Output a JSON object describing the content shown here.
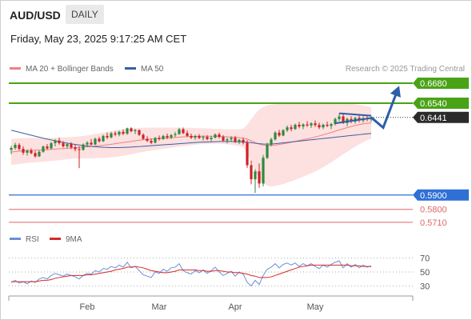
{
  "header": {
    "symbol": "AUD/USD",
    "period": "DAILY",
    "datetime": "Friday, May 23, 2025 9:17:25 AM CET"
  },
  "legend": {
    "ma20": "MA 20 + Bollinger Bands",
    "ma50": "MA 50",
    "credit": "Research © 2025 Trading Central",
    "rsi": "RSI",
    "rsi_ma": "9MA"
  },
  "colors": {
    "bull": "#2e8b3a",
    "bear": "#cc2229",
    "ma20": "#f08080",
    "ma50": "#3a5fa0",
    "bollinger_fill": "#fde0e0",
    "resistance": "#4aa316",
    "support": "#2f6fd6",
    "support_secondary": "#e06666",
    "projection": "#2c5fa6",
    "rsi": "#6b8fd6",
    "rsi_ma": "#d62a2a"
  },
  "chart_data": {
    "type": "candlestick",
    "x_ticks": [
      "Feb",
      "Mar",
      "Apr",
      "May"
    ],
    "y_range": [
      0.567,
      0.673
    ],
    "current_price": 0.6441,
    "levels": [
      {
        "value": 0.668,
        "label": "0.6680",
        "kind": "resistance"
      },
      {
        "value": 0.654,
        "label": "0.6540",
        "kind": "resistance"
      },
      {
        "value": 0.59,
        "label": "0.5900",
        "kind": "support"
      },
      {
        "value": 0.58,
        "label": "0.5800",
        "kind": "support_secondary"
      },
      {
        "value": 0.571,
        "label": "0.5710",
        "kind": "support_secondary"
      }
    ],
    "candles": [
      [
        0.6215,
        0.6242,
        0.6185,
        0.6228
      ],
      [
        0.6228,
        0.6265,
        0.6215,
        0.625
      ],
      [
        0.625,
        0.6262,
        0.621,
        0.6222
      ],
      [
        0.6222,
        0.624,
        0.618,
        0.6195
      ],
      [
        0.6195,
        0.6218,
        0.6175,
        0.621
      ],
      [
        0.621,
        0.6225,
        0.6185,
        0.6192
      ],
      [
        0.6192,
        0.6208,
        0.616,
        0.617
      ],
      [
        0.617,
        0.621,
        0.6165,
        0.6202
      ],
      [
        0.6202,
        0.6245,
        0.6195,
        0.6238
      ],
      [
        0.6238,
        0.6255,
        0.6215,
        0.6225
      ],
      [
        0.6225,
        0.627,
        0.622,
        0.6262
      ],
      [
        0.6262,
        0.629,
        0.624,
        0.628
      ],
      [
        0.628,
        0.63,
        0.625,
        0.6262
      ],
      [
        0.6262,
        0.6275,
        0.623,
        0.624
      ],
      [
        0.624,
        0.6265,
        0.6225,
        0.6255
      ],
      [
        0.6255,
        0.6268,
        0.622,
        0.6232
      ],
      [
        0.6232,
        0.625,
        0.6205,
        0.622
      ],
      [
        0.622,
        0.624,
        0.6088,
        0.6215
      ],
      [
        0.6215,
        0.626,
        0.621,
        0.6252
      ],
      [
        0.6252,
        0.6275,
        0.6235,
        0.6265
      ],
      [
        0.6265,
        0.629,
        0.6245,
        0.6252
      ],
      [
        0.6252,
        0.63,
        0.6248,
        0.6292
      ],
      [
        0.6292,
        0.6305,
        0.6265,
        0.6275
      ],
      [
        0.6275,
        0.632,
        0.627,
        0.6312
      ],
      [
        0.6312,
        0.6335,
        0.629,
        0.6302
      ],
      [
        0.6302,
        0.634,
        0.6295,
        0.633
      ],
      [
        0.633,
        0.6345,
        0.631,
        0.6322
      ],
      [
        0.6322,
        0.635,
        0.631,
        0.634
      ],
      [
        0.634,
        0.6358,
        0.6318,
        0.6328
      ],
      [
        0.6328,
        0.637,
        0.632,
        0.6365
      ],
      [
        0.6365,
        0.6372,
        0.6338,
        0.6345
      ],
      [
        0.6345,
        0.6362,
        0.6325,
        0.6352
      ],
      [
        0.6352,
        0.6358,
        0.6312,
        0.632
      ],
      [
        0.632,
        0.633,
        0.6285,
        0.6292
      ],
      [
        0.6292,
        0.631,
        0.627,
        0.6278
      ],
      [
        0.6278,
        0.6295,
        0.6255,
        0.6265
      ],
      [
        0.6265,
        0.6305,
        0.626,
        0.6298
      ],
      [
        0.6298,
        0.6315,
        0.628,
        0.629
      ],
      [
        0.629,
        0.632,
        0.6285,
        0.6312
      ],
      [
        0.6312,
        0.6328,
        0.629,
        0.6302
      ],
      [
        0.6302,
        0.6325,
        0.629,
        0.6318
      ],
      [
        0.6318,
        0.634,
        0.6305,
        0.6325
      ],
      [
        0.6325,
        0.6368,
        0.632,
        0.6358
      ],
      [
        0.6358,
        0.637,
        0.6325,
        0.6332
      ],
      [
        0.6332,
        0.635,
        0.6305,
        0.6312
      ],
      [
        0.6312,
        0.6328,
        0.629,
        0.63
      ],
      [
        0.63,
        0.632,
        0.6285,
        0.6312
      ],
      [
        0.6312,
        0.6325,
        0.629,
        0.6298
      ],
      [
        0.6298,
        0.6315,
        0.628,
        0.6305
      ],
      [
        0.6305,
        0.6318,
        0.6282,
        0.629
      ],
      [
        0.629,
        0.6312,
        0.6275,
        0.63
      ],
      [
        0.63,
        0.633,
        0.6295,
        0.6322
      ],
      [
        0.6322,
        0.6335,
        0.6295,
        0.6305
      ],
      [
        0.6305,
        0.6318,
        0.627,
        0.628
      ],
      [
        0.628,
        0.63,
        0.626,
        0.6288
      ],
      [
        0.6288,
        0.631,
        0.627,
        0.6298
      ],
      [
        0.6298,
        0.6312,
        0.6262,
        0.6272
      ],
      [
        0.6272,
        0.629,
        0.6255,
        0.6285
      ],
      [
        0.6285,
        0.63,
        0.6252,
        0.6265
      ],
      [
        0.6265,
        0.6282,
        0.609,
        0.6108
      ],
      [
        0.6108,
        0.614,
        0.5975,
        0.601
      ],
      [
        0.601,
        0.608,
        0.5915,
        0.6065
      ],
      [
        0.6065,
        0.612,
        0.595,
        0.598
      ],
      [
        0.598,
        0.618,
        0.596,
        0.616
      ],
      [
        0.616,
        0.6265,
        0.615,
        0.625
      ],
      [
        0.625,
        0.63,
        0.624,
        0.6288
      ],
      [
        0.6288,
        0.6345,
        0.628,
        0.6335
      ],
      [
        0.6335,
        0.6355,
        0.6305,
        0.6315
      ],
      [
        0.6315,
        0.636,
        0.631,
        0.6352
      ],
      [
        0.6352,
        0.6385,
        0.634,
        0.6372
      ],
      [
        0.6372,
        0.639,
        0.6345,
        0.636
      ],
      [
        0.636,
        0.6398,
        0.6355,
        0.639
      ],
      [
        0.639,
        0.641,
        0.6365,
        0.6378
      ],
      [
        0.6378,
        0.64,
        0.636,
        0.6392
      ],
      [
        0.6392,
        0.6415,
        0.6375,
        0.6385
      ],
      [
        0.6385,
        0.6408,
        0.6368,
        0.64
      ],
      [
        0.64,
        0.642,
        0.6375,
        0.6388
      ],
      [
        0.6388,
        0.6405,
        0.636,
        0.6372
      ],
      [
        0.6372,
        0.6398,
        0.636,
        0.639
      ],
      [
        0.639,
        0.6412,
        0.6375,
        0.6382
      ],
      [
        0.6382,
        0.6402,
        0.636,
        0.6395
      ],
      [
        0.6395,
        0.644,
        0.6385,
        0.643
      ],
      [
        0.643,
        0.6468,
        0.6415,
        0.6448
      ],
      [
        0.6448,
        0.6462,
        0.6395,
        0.6402
      ],
      [
        0.6402,
        0.644,
        0.638,
        0.643
      ],
      [
        0.643,
        0.645,
        0.64,
        0.6412
      ],
      [
        0.6412,
        0.6445,
        0.6398,
        0.6438
      ],
      [
        0.6438,
        0.6455,
        0.6408,
        0.642
      ],
      [
        0.642,
        0.645,
        0.6405,
        0.6435
      ],
      [
        0.6435,
        0.6455,
        0.6415,
        0.6428
      ],
      [
        0.6428,
        0.645,
        0.641,
        0.6441
      ]
    ],
    "ma50": [
      0.6352,
      0.6345,
      0.6338,
      0.6331,
      0.6324,
      0.6317,
      0.631,
      0.6303,
      0.6296,
      0.629,
      0.6284,
      0.6278,
      0.6272,
      0.6267,
      0.6262,
      0.6257,
      0.6253,
      0.6249,
      0.6245,
      0.6242,
      0.6239,
      0.6237,
      0.6235,
      0.6233,
      0.6232,
      0.6231,
      0.6231,
      0.6231,
      0.6232,
      0.6233,
      0.6234,
      0.6236,
      0.6238,
      0.624,
      0.6242,
      0.6244,
      0.6246,
      0.6248,
      0.625,
      0.6252,
      0.6254,
      0.6256,
      0.6258,
      0.626,
      0.6262,
      0.6264,
      0.6266,
      0.6268,
      0.6269,
      0.627,
      0.6271,
      0.6272,
      0.6273,
      0.6273,
      0.6273,
      0.6273,
      0.6272,
      0.6271,
      0.627,
      0.6268,
      0.6265,
      0.6261,
      0.6258,
      0.6256,
      0.6255,
      0.6256,
      0.6258,
      0.6261,
      0.6264,
      0.6267,
      0.627,
      0.6273,
      0.6276,
      0.6279,
      0.6282,
      0.6285,
      0.6288,
      0.6291,
      0.6294,
      0.6297,
      0.63,
      0.6303,
      0.6306,
      0.6309,
      0.6312,
      0.6315,
      0.6318,
      0.6321,
      0.6324,
      0.6327,
      0.633
    ],
    "ma20": [
      0.62,
      0.6203,
      0.6206,
      0.6208,
      0.621,
      0.6212,
      0.6213,
      0.6214,
      0.6215,
      0.6216,
      0.6218,
      0.622,
      0.6222,
      0.6224,
      0.6226,
      0.6228,
      0.623,
      0.6232,
      0.6234,
      0.6236,
      0.6238,
      0.6241,
      0.6244,
      0.6247,
      0.625,
      0.6254,
      0.6258,
      0.6262,
      0.6266,
      0.627,
      0.6274,
      0.6278,
      0.6282,
      0.6285,
      0.6288,
      0.629,
      0.6292,
      0.6294,
      0.6296,
      0.6298,
      0.63,
      0.6302,
      0.6304,
      0.6306,
      0.6307,
      0.6308,
      0.6309,
      0.631,
      0.631,
      0.631,
      0.631,
      0.631,
      0.6309,
      0.6308,
      0.6306,
      0.6304,
      0.6302,
      0.63,
      0.6298,
      0.629,
      0.6278,
      0.6266,
      0.6255,
      0.6248,
      0.6245,
      0.6245,
      0.6248,
      0.6252,
      0.6257,
      0.6262,
      0.6268,
      0.6274,
      0.628,
      0.6286,
      0.6292,
      0.6298,
      0.6305,
      0.6312,
      0.632,
      0.6328,
      0.6336,
      0.6345,
      0.6354,
      0.6362,
      0.637,
      0.6378,
      0.6385,
      0.6391,
      0.6396,
      0.64,
      0.6403
    ],
    "bb_width": [
      0.009,
      0.009,
      0.0089,
      0.0088,
      0.0087,
      0.0086,
      0.0085,
      0.0084,
      0.0083,
      0.0082,
      0.0081,
      0.008,
      0.0079,
      0.0078,
      0.0077,
      0.0076,
      0.0076,
      0.0077,
      0.0078,
      0.008,
      0.0082,
      0.0084,
      0.0086,
      0.0088,
      0.009,
      0.0091,
      0.0092,
      0.0092,
      0.0092,
      0.0091,
      0.009,
      0.0088,
      0.0086,
      0.0084,
      0.0082,
      0.008,
      0.0078,
      0.0076,
      0.0074,
      0.0072,
      0.007,
      0.0068,
      0.0066,
      0.0064,
      0.0062,
      0.006,
      0.0058,
      0.0056,
      0.0055,
      0.0054,
      0.0053,
      0.0052,
      0.0052,
      0.0052,
      0.0053,
      0.0054,
      0.0056,
      0.0058,
      0.0065,
      0.01,
      0.015,
      0.02,
      0.024,
      0.0265,
      0.028,
      0.0285,
      0.0285,
      0.0283,
      0.028,
      0.0276,
      0.0272,
      0.0268,
      0.0263,
      0.0258,
      0.0252,
      0.0246,
      0.024,
      0.0233,
      0.0225,
      0.0217,
      0.0208,
      0.0198,
      0.0188,
      0.0178,
      0.0168,
      0.0158,
      0.0148,
      0.0138,
      0.0128,
      0.0118,
      0.011
    ],
    "triangle": {
      "upper": [
        [
          82,
          0.647
        ],
        [
          90,
          0.6453
        ]
      ],
      "lower": [
        [
          81,
          0.64
        ],
        [
          90,
          0.6437
        ]
      ]
    },
    "projection": [
      [
        90,
        0.6441
      ],
      [
        93,
        0.637
      ],
      [
        97,
        0.6662
      ]
    ],
    "rsi_panel": {
      "y_range": [
        20,
        80
      ],
      "levels": [
        70,
        50,
        30
      ],
      "rsi": [
        35,
        38,
        34,
        36,
        33,
        37,
        35,
        40,
        42,
        40,
        45,
        48,
        46,
        44,
        47,
        45,
        43,
        40,
        45,
        48,
        47,
        52,
        50,
        55,
        54,
        58,
        56,
        60,
        57,
        64,
        56,
        58,
        52,
        46,
        44,
        42,
        50,
        48,
        54,
        51,
        56,
        57,
        62,
        52,
        49,
        47,
        52,
        49,
        53,
        48,
        52,
        57,
        50,
        45,
        48,
        51,
        44,
        50,
        47,
        35,
        30,
        38,
        32,
        45,
        54,
        57,
        62,
        56,
        61,
        63,
        60,
        63,
        58,
        62,
        59,
        62,
        58,
        55,
        60,
        57,
        61,
        64,
        66,
        56,
        62,
        57,
        61,
        56,
        60,
        57,
        59
      ],
      "rsi_ma": [
        36,
        36,
        36,
        36,
        36,
        36,
        36,
        37,
        38,
        38,
        39,
        41,
        42,
        43,
        44,
        45,
        45,
        45,
        45,
        46,
        46,
        47,
        48,
        49,
        50,
        51,
        53,
        54,
        55,
        57,
        57,
        58,
        57,
        56,
        54,
        52,
        51,
        50,
        49,
        49,
        50,
        51,
        53,
        53,
        53,
        53,
        53,
        52,
        52,
        51,
        51,
        52,
        52,
        51,
        50,
        50,
        49,
        49,
        48,
        47,
        45,
        44,
        42,
        42,
        42,
        43,
        45,
        47,
        49,
        51,
        53,
        55,
        57,
        58,
        59,
        60,
        60,
        60,
        60,
        60,
        60,
        60,
        60,
        60,
        60,
        59,
        59,
        59,
        58,
        58,
        58
      ]
    }
  }
}
